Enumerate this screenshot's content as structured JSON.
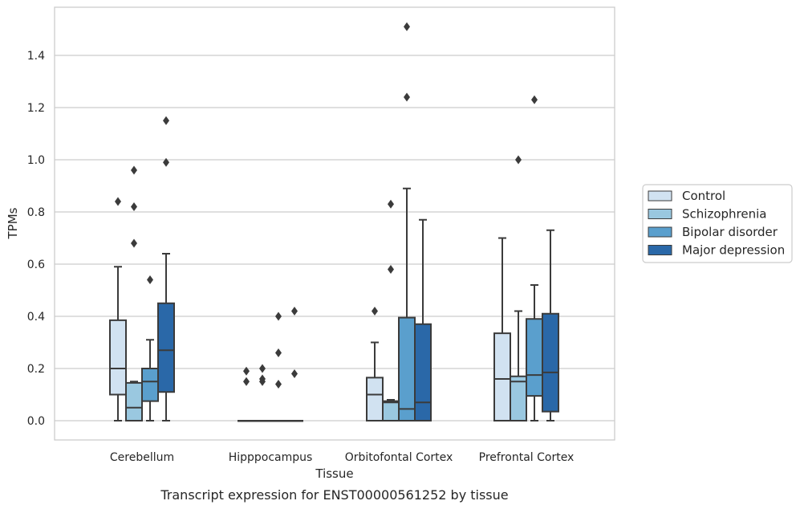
{
  "chart_data": {
    "type": "box",
    "title": "",
    "caption": "Transcript expression for ENST00000561252 by tissue",
    "xlabel": "Tissue",
    "ylabel": "TPMs",
    "ylim": [
      -0.07,
      1.56
    ],
    "yticks": [
      0.0,
      0.2,
      0.4,
      0.6,
      0.8,
      1.0,
      1.2,
      1.4
    ],
    "ytick_labels": [
      "0.0",
      "0.2",
      "0.4",
      "0.6",
      "0.8",
      "1.0",
      "1.2",
      "1.4"
    ],
    "grid": "horizontal",
    "legend_position": "right",
    "categories": [
      "Cerebellum",
      "Hipppocampus",
      "Orbitofontal Cortex",
      "Prefrontal Cortex"
    ],
    "series": [
      {
        "name": "Control",
        "color": "#d1e2f1",
        "boxes": [
          {
            "whisker_low": 0.0,
            "q1": 0.1,
            "median": 0.2,
            "q3": 0.385,
            "whisker_high": 0.59,
            "outliers": [
              0.84
            ]
          },
          {
            "whisker_low": 0.0,
            "q1": 0.0,
            "median": 0.0,
            "q3": 0.0,
            "whisker_high": 0.0,
            "outliers": [
              0.19,
              0.15
            ]
          },
          {
            "whisker_low": 0.0,
            "q1": 0.0,
            "median": 0.1,
            "q3": 0.165,
            "whisker_high": 0.3,
            "outliers": [
              0.42
            ]
          },
          {
            "whisker_low": 0.0,
            "q1": 0.0,
            "median": 0.16,
            "q3": 0.335,
            "whisker_high": 0.7,
            "outliers": []
          }
        ]
      },
      {
        "name": "Schizophrenia",
        "color": "#9ac8e0",
        "boxes": [
          {
            "whisker_low": 0.0,
            "q1": 0.0,
            "median": 0.05,
            "q3": 0.145,
            "whisker_high": 0.15,
            "outliers": [
              0.96,
              0.82,
              0.68
            ]
          },
          {
            "whisker_low": 0.0,
            "q1": 0.0,
            "median": 0.0,
            "q3": 0.0,
            "whisker_high": 0.0,
            "outliers": [
              0.2,
              0.16,
              0.15
            ]
          },
          {
            "whisker_low": 0.0,
            "q1": 0.0,
            "median": 0.07,
            "q3": 0.075,
            "whisker_high": 0.08,
            "outliers": [
              0.83,
              0.58
            ]
          },
          {
            "whisker_low": 0.0,
            "q1": 0.0,
            "median": 0.15,
            "q3": 0.17,
            "whisker_high": 0.42,
            "outliers": [
              1.0
            ]
          }
        ]
      },
      {
        "name": "Bipolar disorder",
        "color": "#5a9fcd",
        "boxes": [
          {
            "whisker_low": 0.0,
            "q1": 0.075,
            "median": 0.15,
            "q3": 0.2,
            "whisker_high": 0.31,
            "outliers": [
              0.54
            ]
          },
          {
            "whisker_low": 0.0,
            "q1": 0.0,
            "median": 0.0,
            "q3": 0.0,
            "whisker_high": 0.0,
            "outliers": [
              0.4,
              0.26,
              0.14
            ]
          },
          {
            "whisker_low": 0.0,
            "q1": 0.0,
            "median": 0.045,
            "q3": 0.395,
            "whisker_high": 0.89,
            "outliers": [
              1.51,
              1.24
            ]
          },
          {
            "whisker_low": 0.0,
            "q1": 0.095,
            "median": 0.175,
            "q3": 0.39,
            "whisker_high": 0.52,
            "outliers": [
              1.23
            ]
          }
        ]
      },
      {
        "name": "Major depression",
        "color": "#2a68a8",
        "boxes": [
          {
            "whisker_low": 0.0,
            "q1": 0.11,
            "median": 0.27,
            "q3": 0.45,
            "whisker_high": 0.64,
            "outliers": [
              1.15,
              0.99
            ]
          },
          {
            "whisker_low": 0.0,
            "q1": 0.0,
            "median": 0.0,
            "q3": 0.0,
            "whisker_high": 0.0,
            "outliers": [
              0.42,
              0.18
            ]
          },
          {
            "whisker_low": 0.0,
            "q1": 0.0,
            "median": 0.07,
            "q3": 0.37,
            "whisker_high": 0.77,
            "outliers": []
          },
          {
            "whisker_low": 0.0,
            "q1": 0.035,
            "median": 0.185,
            "q3": 0.41,
            "whisker_high": 0.73,
            "outliers": []
          }
        ]
      }
    ]
  }
}
